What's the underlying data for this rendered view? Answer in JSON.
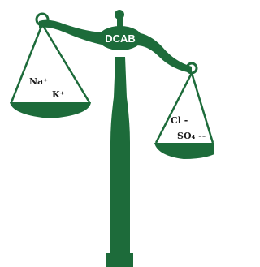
{
  "badge": "DCAB",
  "left_pan": {
    "ions": [
      "Na⁺",
      "K⁺"
    ]
  },
  "right_pan": {
    "ions": [
      "Cl -",
      "SO₄ --"
    ]
  }
}
